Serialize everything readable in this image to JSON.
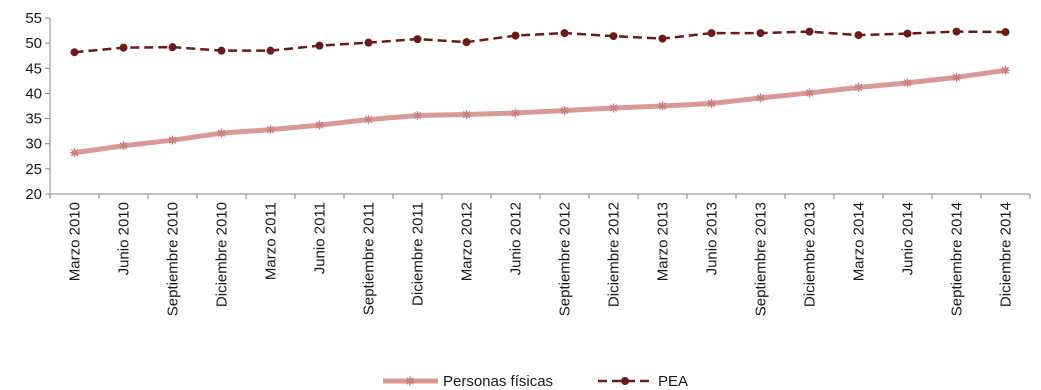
{
  "chart_data": {
    "type": "line",
    "categories": [
      "Marzo 2010",
      "Junio 2010",
      "Septiembre 2010",
      "Diciembre 2010",
      "Marzo 2011",
      "Junio 2011",
      "Septiembre 2011",
      "Diciembre 2011",
      "Marzo 2012",
      "Junio 2012",
      "Septiembre 2012",
      "Diciembre 2012",
      "Marzo 2013",
      "Junio 2013",
      "Septiembre 2013",
      "Diciembre 2013",
      "Marzo 2014",
      "Junio 2014",
      "Septiembre 2014",
      "Diciembre 2014"
    ],
    "series": [
      {
        "name": "Personas físicas",
        "color": "#d99a97",
        "style": "solid-thick-star-markers",
        "values": [
          28.2,
          29.6,
          30.7,
          32.1,
          32.8,
          33.7,
          34.8,
          35.6,
          35.8,
          36.1,
          36.6,
          37.1,
          37.5,
          38.0,
          39.1,
          40.1,
          41.2,
          42.1,
          43.2,
          44.6
        ]
      },
      {
        "name": "PEA",
        "color": "#6b1a1a",
        "style": "dashed-circle-markers",
        "values": [
          48.2,
          49.1,
          49.2,
          48.5,
          48.5,
          49.5,
          50.1,
          50.8,
          50.2,
          51.5,
          52.0,
          51.4,
          50.9,
          52.0,
          52.0,
          52.3,
          51.6,
          51.9,
          52.3,
          52.2
        ]
      }
    ],
    "title": "",
    "xlabel": "",
    "ylabel": "",
    "ylim": [
      20,
      55
    ],
    "yticks": [
      "20",
      "25",
      "30",
      "35",
      "40",
      "45",
      "50",
      "55"
    ],
    "grid": false,
    "legend_position": "bottom"
  }
}
